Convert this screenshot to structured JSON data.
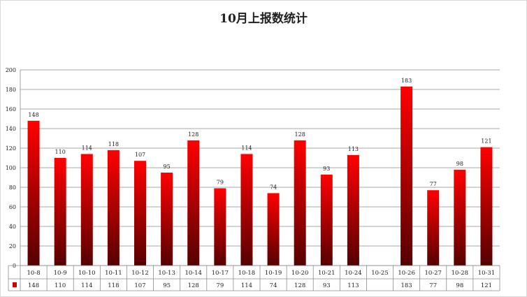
{
  "chart_data": {
    "type": "bar",
    "title": "10月上报数统计",
    "categories": [
      "10-8",
      "10-9",
      "10-10",
      "10-11",
      "10-12",
      "10-13",
      "10-14",
      "10-17",
      "10-18",
      "10-19",
      "10-20",
      "10-21",
      "10-24",
      "10-25",
      "10-26",
      "10-27",
      "10-28",
      "10-31"
    ],
    "values": [
      148,
      110,
      114,
      118,
      107,
      95,
      128,
      79,
      114,
      74,
      128,
      93,
      113,
      null,
      183,
      77,
      98,
      121
    ],
    "table_values": [
      "148",
      "110",
      "114",
      "118",
      "107",
      "95",
      "128",
      "79",
      "114",
      "74",
      "128",
      "93",
      "113",
      "",
      "183",
      "77",
      "98",
      "121"
    ],
    "ylim": [
      0,
      200
    ],
    "yticks": [
      0,
      20,
      40,
      60,
      80,
      100,
      120,
      140,
      160,
      180,
      200
    ],
    "grid": true,
    "data_table": true,
    "bar_color_top": "#ff0000",
    "bar_color_bottom": "#550000",
    "legend_color": "#cc0000"
  }
}
